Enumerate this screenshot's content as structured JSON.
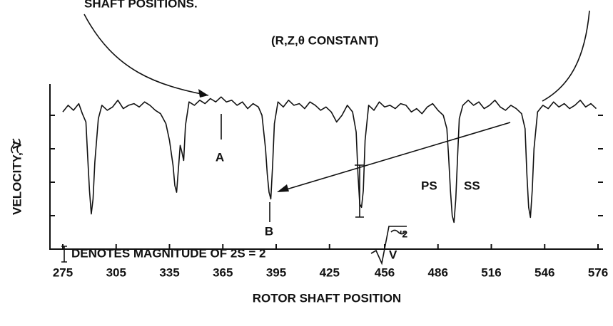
{
  "chart_data": {
    "type": "line",
    "title": "(R,Z,θ CONSTANT)",
    "annotations": {
      "top_left": "SHAFT POSITIONS.",
      "a": "A",
      "b": "B",
      "ps": "PS",
      "ss": "SS",
      "note": "DENOTES MAGNITUDE OF 2S = 2",
      "note_radicand": "V",
      "note_exponent": "'2"
    },
    "xlabel": "ROTOR SHAFT POSITION",
    "ylabel": "VELOCITY, V",
    "xlim": [
      275,
      576
    ],
    "xticks": [
      275,
      305,
      335,
      365,
      395,
      425,
      456,
      486,
      516,
      546,
      576
    ],
    "ylim": [
      0,
      10
    ],
    "yticks": [
      2,
      4,
      6,
      8
    ],
    "x": [
      275,
      278,
      281,
      284,
      286,
      288,
      289,
      290,
      291,
      292,
      293,
      295,
      297,
      300,
      303,
      306,
      309,
      312,
      315,
      318,
      321,
      324,
      327,
      330,
      333,
      335,
      337,
      338,
      339,
      340,
      341,
      342,
      343,
      344,
      346,
      349,
      352,
      355,
      358,
      361,
      364,
      367,
      370,
      373,
      376,
      379,
      382,
      385,
      387,
      389,
      390,
      391,
      392,
      393,
      394,
      396,
      399,
      402,
      405,
      408,
      411,
      414,
      417,
      420,
      423,
      426,
      429,
      432,
      435,
      438,
      440,
      441,
      442,
      443,
      444,
      445,
      447,
      450,
      453,
      456,
      459,
      462,
      465,
      468,
      471,
      474,
      477,
      480,
      483,
      486,
      489,
      491,
      492,
      493,
      494,
      495,
      496,
      497,
      498,
      500,
      503,
      506,
      509,
      512,
      515,
      518,
      521,
      524,
      527,
      530,
      533,
      535,
      536,
      537,
      538,
      539,
      540,
      542,
      545,
      548,
      551,
      554,
      557,
      560,
      563,
      566,
      569,
      572,
      575
    ],
    "series": [
      {
        "name": "velocity",
        "color": "#111111",
        "values": [
          8.2,
          8.6,
          8.3,
          8.7,
          8.1,
          7.6,
          5.5,
          3.5,
          2.1,
          3.0,
          5.2,
          7.8,
          8.6,
          8.3,
          8.5,
          8.9,
          8.4,
          8.6,
          8.7,
          8.5,
          8.8,
          8.6,
          8.3,
          8.1,
          7.5,
          6.5,
          5.0,
          3.8,
          3.4,
          4.8,
          6.2,
          5.8,
          5.3,
          7.4,
          8.8,
          8.6,
          8.9,
          8.7,
          9.0,
          8.8,
          9.1,
          8.8,
          8.9,
          8.6,
          8.8,
          8.4,
          8.7,
          8.5,
          8.0,
          6.0,
          4.5,
          3.4,
          3.0,
          5.0,
          7.5,
          8.8,
          8.5,
          8.9,
          8.6,
          8.7,
          8.4,
          8.8,
          8.6,
          8.3,
          8.5,
          8.2,
          7.6,
          8.0,
          8.6,
          8.2,
          7.0,
          4.5,
          2.7,
          2.5,
          3.5,
          6.5,
          8.6,
          8.3,
          8.8,
          8.5,
          8.6,
          8.4,
          8.7,
          8.6,
          8.2,
          8.4,
          8.1,
          8.5,
          8.7,
          8.3,
          8.0,
          7.2,
          5.5,
          3.5,
          2.0,
          1.6,
          3.0,
          5.5,
          7.8,
          8.6,
          8.9,
          8.6,
          8.8,
          8.4,
          8.6,
          8.9,
          8.5,
          8.3,
          8.6,
          8.4,
          8.1,
          7.2,
          4.5,
          2.5,
          1.9,
          3.5,
          6.0,
          8.2,
          8.6,
          8.4,
          8.8,
          8.5,
          8.7,
          8.4,
          8.6,
          8.9,
          8.5,
          8.7,
          8.4
        ]
      }
    ]
  }
}
